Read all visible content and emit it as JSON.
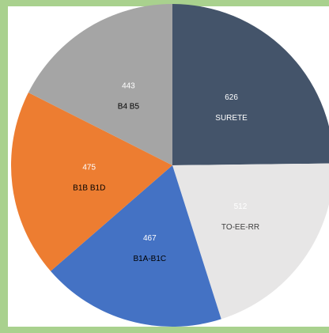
{
  "chart_data": {
    "type": "pie",
    "categories": [
      "SURETE",
      "TO-EE-RR",
      "B1A-B1C",
      "B1B B1D",
      "B4 B5"
    ],
    "values": [
      626,
      512,
      467,
      475,
      443
    ],
    "colors": [
      "#44546a",
      "#e7e6e6",
      "#4472c4",
      "#ed7d31",
      "#a5a5a5"
    ],
    "value_label_colors": [
      "#ffffff",
      "#ffffff",
      "#ffffff",
      "#ffffff",
      "#ffffff"
    ],
    "name_label_colors": [
      "#ffffff",
      "#404040",
      "#000000",
      "#000000",
      "#000000"
    ]
  }
}
